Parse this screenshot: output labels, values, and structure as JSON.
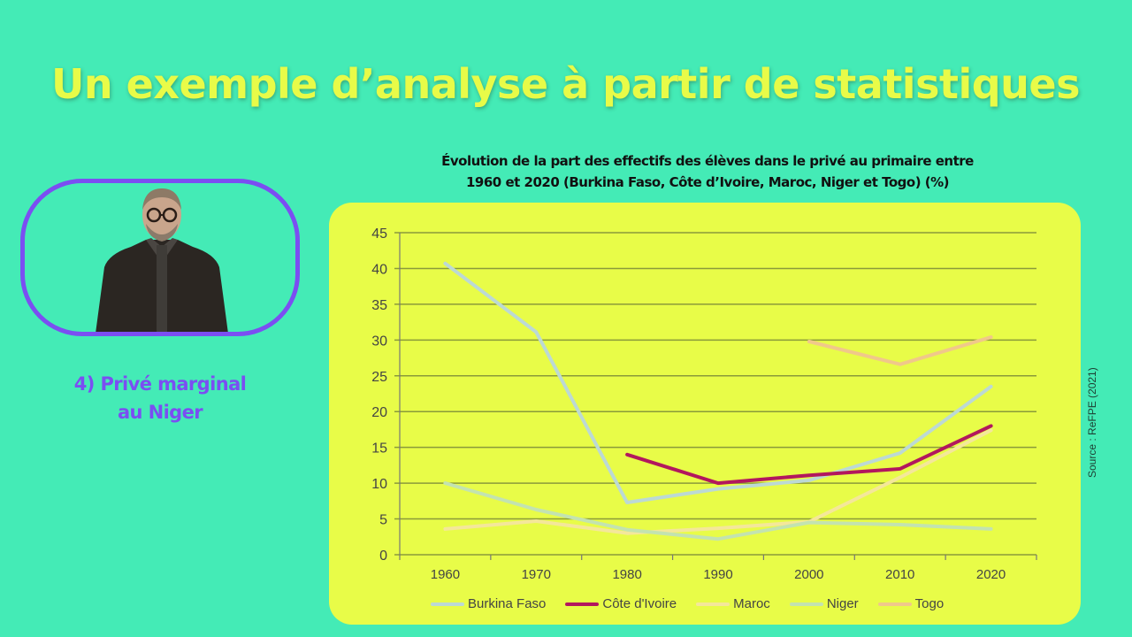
{
  "slide": {
    "title": "Un exemple d’analyse à partir de statistiques",
    "caption_line1": "4) Privé marginal",
    "caption_line2": "au Niger",
    "source": "Source : ReFPE (2021)",
    "colors": {
      "background": "#44ebb6",
      "title": "#e8fb48",
      "accent": "#7b4ef2",
      "chart_panel": "#e8fc48"
    }
  },
  "chart_data": {
    "type": "line",
    "title": "Évolution de la part des effectifs des élèves dans le privé au primaire entre 1960 et 2020 (Burkina Faso, Côte d’Ivoire, Maroc, Niger et Togo) (%)",
    "title_line1": "Évolution de la part des effectifs des élèves dans le privé au primaire entre",
    "title_line2": "1960 et 2020 (Burkina Faso, Côte d’Ivoire, Maroc, Niger et Togo) (%)",
    "xlabel": "",
    "ylabel": "",
    "categories": [
      "1960",
      "1970",
      "1980",
      "1990",
      "2000",
      "2010",
      "2020"
    ],
    "ylim": [
      0,
      45
    ],
    "yticks": [
      0,
      5,
      10,
      15,
      20,
      25,
      30,
      35,
      40,
      45
    ],
    "grid": true,
    "legend_position": "bottom",
    "series": [
      {
        "name": "Burkina Faso",
        "color": "#bcd9d4",
        "values": [
          40.7,
          31.1,
          7.3,
          9.2,
          10.4,
          14.2,
          23.5
        ]
      },
      {
        "name": "Côte d'Ivoire",
        "color": "#b2175e",
        "values": [
          null,
          null,
          14.0,
          10.0,
          11.1,
          12.0,
          18.0
        ]
      },
      {
        "name": "Maroc",
        "color": "#f4e79a",
        "values": [
          3.6,
          4.7,
          3.0,
          3.7,
          4.6,
          10.8,
          17.4
        ]
      },
      {
        "name": "Niger",
        "color": "#c3e3b0",
        "values": [
          10.0,
          6.3,
          3.5,
          2.2,
          4.5,
          4.2,
          3.6
        ]
      },
      {
        "name": "Togo",
        "color": "#f0c88a",
        "values": [
          null,
          null,
          null,
          null,
          29.8,
          26.6,
          30.4
        ]
      }
    ]
  }
}
